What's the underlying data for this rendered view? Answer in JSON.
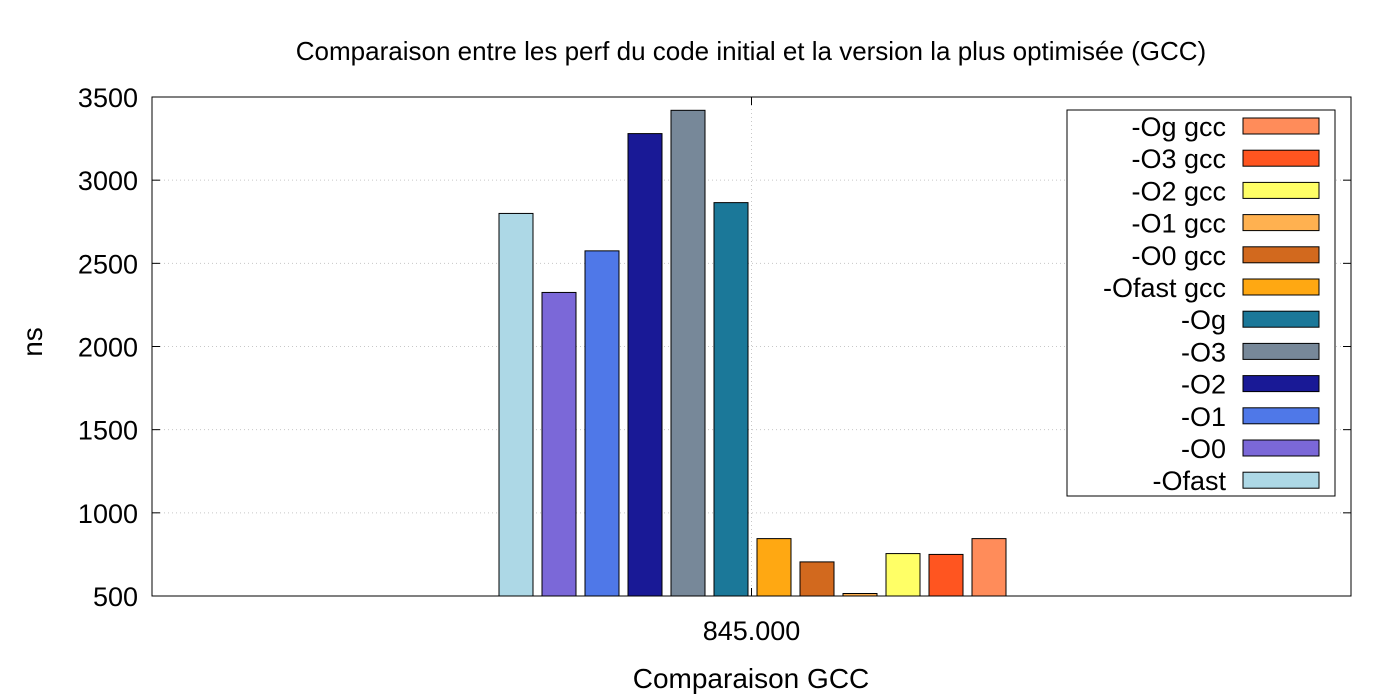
{
  "chart_data": {
    "type": "bar",
    "title": "Comparaison entre les perf du code initial et la version la plus optimisée (GCC)",
    "xlabel": "Comparaison GCC",
    "ylabel": "ns",
    "categories": [
      "845.000"
    ],
    "ylim": [
      500,
      3500
    ],
    "yticks": [
      "500",
      "1000",
      "1500",
      "2000",
      "2500",
      "3000",
      "3500"
    ],
    "grid": true,
    "legend_position": "top-right",
    "series": [
      {
        "name": "-Ofast",
        "color": "#add8e6",
        "values": [
          2800
        ]
      },
      {
        "name": "-O0",
        "color": "#7b68d8",
        "values": [
          2325
        ]
      },
      {
        "name": "-O1",
        "color": "#4f78e8",
        "values": [
          2575
        ]
      },
      {
        "name": "-O2",
        "color": "#191996",
        "values": [
          3280
        ]
      },
      {
        "name": "-O3",
        "color": "#778899",
        "values": [
          3420
        ]
      },
      {
        "name": "-Og",
        "color": "#1b7899",
        "values": [
          2865
        ]
      },
      {
        "name": "-Ofast gcc",
        "color": "#ffa812",
        "values": [
          845
        ]
      },
      {
        "name": "-O0 gcc",
        "color": "#d2691e",
        "values": [
          705
        ]
      },
      {
        "name": "-O1 gcc",
        "color": "#ffb150",
        "values": [
          515
        ]
      },
      {
        "name": "-O2 gcc",
        "color": "#ffff66",
        "values": [
          755
        ]
      },
      {
        "name": "-O3 gcc",
        "color": "#ff5520",
        "values": [
          750
        ]
      },
      {
        "name": "-Og gcc",
        "color": "#ff8c5a",
        "values": [
          845
        ]
      }
    ]
  }
}
